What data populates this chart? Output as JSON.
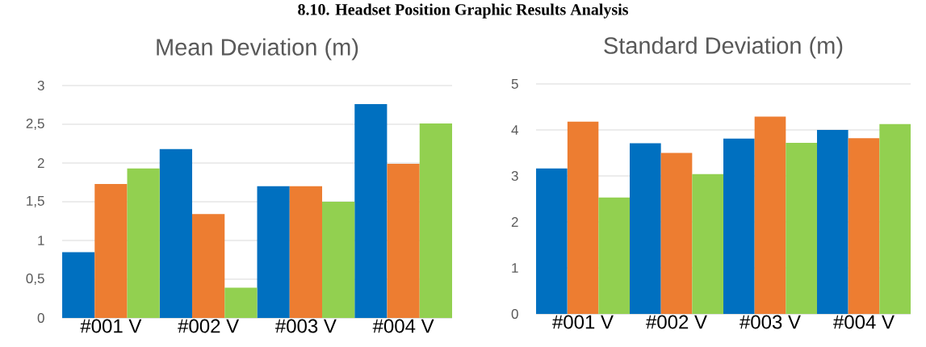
{
  "chart_data": [
    {
      "type": "bar",
      "title": "Mean Deviation (m)",
      "annotations": [
        "8.10. Headset Position Graphic Results Analysis"
      ],
      "categories": [
        "#001 V",
        "#002 V",
        "#003 V",
        "#004 V"
      ],
      "series": [
        {
          "color": "#0070c0",
          "values": [
            0.85,
            2.18,
            1.7,
            2.76
          ]
        },
        {
          "color": "#ed7d31",
          "values": [
            1.73,
            1.34,
            1.7,
            1.99
          ]
        },
        {
          "color": "#92d050",
          "values": [
            1.93,
            0.39,
            1.5,
            2.51
          ]
        }
      ],
      "ylim": [
        0,
        3
      ],
      "yticks": [
        0,
        {
          "value": 0.5,
          "label": "0,5"
        },
        1,
        {
          "value": 1.5,
          "label": "1,5"
        },
        2,
        {
          "value": 2.5,
          "label": "2,5"
        },
        3
      ],
      "grid": "y"
    },
    {
      "type": "bar",
      "title": "Standard Deviation (m)",
      "categories": [
        "#001 V",
        "#002 V",
        "#003 V",
        "#004 V"
      ],
      "series": [
        {
          "color": "#0070c0",
          "values": [
            3.16,
            3.71,
            3.81,
            4.0
          ]
        },
        {
          "color": "#ed7d31",
          "values": [
            4.18,
            3.5,
            4.29,
            3.82
          ]
        },
        {
          "color": "#92d050",
          "values": [
            2.53,
            3.04,
            3.72,
            4.13
          ]
        }
      ],
      "ylim": [
        0,
        5
      ],
      "yticks": [
        0,
        1,
        2,
        3,
        4,
        5
      ],
      "grid": "y"
    }
  ]
}
